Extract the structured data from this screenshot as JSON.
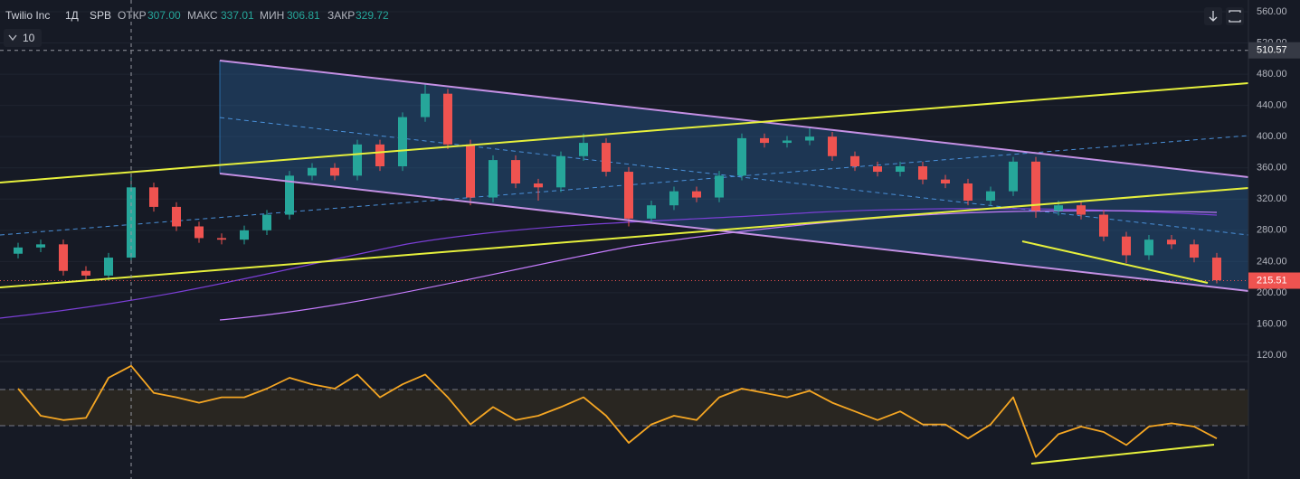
{
  "header": {
    "symbol": "Twilio Inc",
    "interval": "1Д",
    "exchange": "SPB",
    "open_label": "ОТКР",
    "open": "307.00",
    "high_label": "МАКС",
    "high": "337.01",
    "low_label": "МИН",
    "low": "306.81",
    "close_label": "ЗАКР",
    "close": "329.72",
    "indicator_count": "10"
  },
  "chart_data": [
    {
      "type": "candlestick",
      "open": [
        250,
        258,
        262,
        228,
        222,
        245,
        335,
        310,
        285,
        270,
        268,
        280,
        300,
        350,
        360,
        350,
        390,
        362,
        425,
        455,
        390,
        322,
        370,
        340,
        335,
        375,
        392,
        355,
        295,
        312,
        330,
        322,
        350,
        398,
        392,
        395,
        400,
        375,
        362,
        355,
        362,
        345,
        340,
        318,
        330,
        368,
        305,
        312,
        300,
        272,
        248,
        268,
        262,
        245
      ],
      "high": [
        264,
        268,
        268,
        234,
        251,
        352,
        341,
        316,
        291,
        276,
        286,
        306,
        356,
        366,
        366,
        396,
        396,
        431,
        468,
        461,
        396,
        376,
        376,
        346,
        381,
        404,
        398,
        361,
        318,
        336,
        336,
        356,
        404,
        404,
        401,
        412,
        406,
        381,
        368,
        368,
        368,
        351,
        346,
        336,
        374,
        374,
        318,
        318,
        306,
        278,
        274,
        274,
        268,
        251
      ],
      "low": [
        244,
        252,
        222,
        216,
        216,
        239,
        304,
        279,
        264,
        262,
        262,
        274,
        294,
        344,
        344,
        344,
        356,
        356,
        419,
        384,
        312,
        316,
        334,
        318,
        329,
        369,
        349,
        285,
        289,
        306,
        316,
        316,
        344,
        386,
        386,
        389,
        369,
        356,
        349,
        349,
        339,
        334,
        312,
        312,
        324,
        296,
        299,
        294,
        266,
        238,
        242,
        256,
        239,
        212
      ],
      "close": [
        258,
        262,
        228,
        222,
        245,
        335,
        310,
        285,
        270,
        268,
        280,
        300,
        350,
        360,
        350,
        390,
        362,
        425,
        455,
        390,
        322,
        370,
        340,
        335,
        375,
        392,
        355,
        295,
        312,
        330,
        322,
        350,
        398,
        392,
        395,
        400,
        375,
        362,
        355,
        362,
        345,
        340,
        318,
        330,
        368,
        305,
        312,
        300,
        272,
        248,
        268,
        262,
        245,
        216
      ],
      "up_color": "#26a69a",
      "down_color": "#ef5350",
      "ylim": [
        120,
        560
      ],
      "yticks": [
        {
          "value": 560,
          "label": "560.00"
        },
        {
          "value": 520,
          "label": "520.00"
        },
        {
          "value": 480,
          "label": "480.00"
        },
        {
          "value": 440,
          "label": "440.00"
        },
        {
          "value": 400,
          "label": "400.00"
        },
        {
          "value": 360,
          "label": "360.00"
        },
        {
          "value": 320,
          "label": "320.00"
        },
        {
          "value": 280,
          "label": "280.00"
        },
        {
          "value": 240,
          "label": "240.00"
        },
        {
          "value": 200,
          "label": "200.00"
        },
        {
          "value": 160,
          "label": "160.00"
        },
        {
          "value": 120,
          "label": "120.00"
        }
      ],
      "crosshair_price": {
        "value": 510.57,
        "label": "510.57"
      },
      "last_price": {
        "value": 215.51,
        "label": "215.51"
      }
    },
    {
      "type": "line",
      "color": "#f5a623",
      "ylim": [
        0,
        100
      ],
      "values": [
        75,
        50,
        46,
        48,
        85,
        96,
        71,
        67,
        62,
        67,
        67,
        75,
        85,
        79,
        75,
        88,
        67,
        79,
        88,
        67,
        42,
        58,
        46,
        50,
        58,
        67,
        50,
        25,
        42,
        50,
        46,
        67,
        75,
        71,
        67,
        73,
        62,
        54,
        46,
        54,
        42,
        42,
        29,
        42,
        67,
        12,
        33,
        40,
        35,
        23,
        40,
        43,
        40,
        29
      ]
    }
  ]
}
